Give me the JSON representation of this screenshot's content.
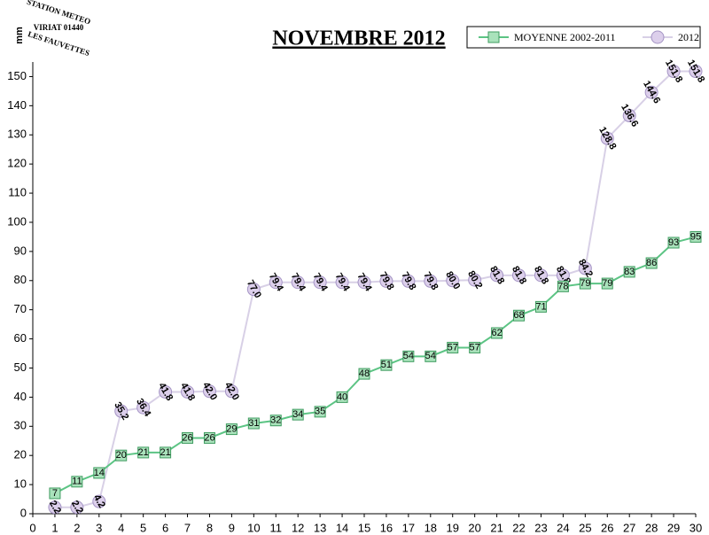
{
  "chart_data": {
    "type": "line",
    "title": "NOVEMBRE 2012",
    "y_label": "mm",
    "logo": [
      "STATION METEO",
      "VIRIAT 01440",
      "LES FAUVETTES"
    ],
    "x": [
      1,
      2,
      3,
      4,
      5,
      6,
      7,
      8,
      9,
      10,
      11,
      12,
      13,
      14,
      15,
      16,
      17,
      18,
      19,
      20,
      21,
      22,
      23,
      24,
      25,
      26,
      27,
      28,
      29,
      30
    ],
    "xlim": [
      0,
      30
    ],
    "xticks": [
      0,
      1,
      2,
      3,
      4,
      5,
      6,
      7,
      8,
      9,
      10,
      11,
      12,
      13,
      14,
      15,
      16,
      17,
      18,
      19,
      20,
      21,
      22,
      23,
      24,
      25,
      26,
      27,
      28,
      29,
      30
    ],
    "ylim": [
      0,
      155
    ],
    "yticks": [
      0,
      10,
      20,
      30,
      40,
      50,
      60,
      70,
      80,
      90,
      100,
      110,
      120,
      130,
      140,
      150
    ],
    "legend": "top-right",
    "series": [
      {
        "name": "MOYENNE 2002-2011",
        "color": "#5cc484",
        "marker": "square",
        "marker_fill": "#a9e2bb",
        "values": [
          7,
          11,
          14,
          20,
          21,
          21,
          26,
          26,
          29,
          31,
          32,
          34,
          35,
          40,
          48,
          51,
          54,
          54,
          57,
          57,
          62,
          68,
          71,
          78,
          79,
          79,
          83,
          86,
          93,
          95
        ]
      },
      {
        "name": "2012",
        "color": "#d8d0e6",
        "marker": "circle",
        "marker_fill": "#dccfeb",
        "values": [
          2.2,
          2.2,
          4.2,
          35.2,
          36.4,
          41.8,
          41.8,
          42.0,
          42.0,
          77.0,
          79.4,
          79.4,
          79.4,
          79.4,
          79.4,
          79.8,
          79.8,
          79.8,
          80.0,
          80.2,
          81.8,
          81.8,
          81.8,
          81.8,
          84.2,
          128.8,
          136.6,
          144.6,
          151.8,
          151.8
        ],
        "value_labels": [
          "2.2",
          "2.2",
          "4.2",
          "35.2",
          "36.4",
          "41.8",
          "41.8",
          "42.0",
          "42.0",
          "77.0",
          "79.4",
          "79.4",
          "79.4",
          "79.4",
          "79.4",
          "79.8",
          "79.8",
          "79.8",
          "80.0",
          "80.2",
          "81.8",
          "81.8",
          "81.8",
          "81.8",
          "84.2",
          "128.8",
          "136.6",
          "144.6",
          "151.8",
          "151.8"
        ]
      }
    ]
  }
}
